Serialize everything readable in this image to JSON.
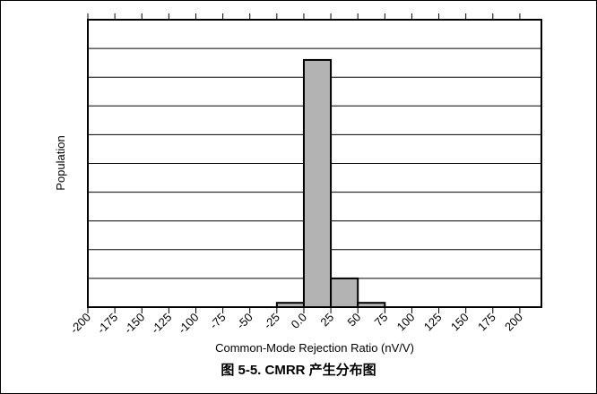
{
  "chart_data": {
    "type": "histogram",
    "caption": "图 5-5. CMRR 产生分布图",
    "x_label": "Common-Mode Rejection Ratio (nV/V)",
    "y_label": "Population",
    "bins": [
      -25,
      0,
      25,
      50,
      75
    ],
    "values": [
      0.15,
      8.6,
      1.0,
      0.15
    ],
    "color": "#b3b3b3",
    "xlim": [
      -200,
      220
    ],
    "xticks": [
      -200,
      -175,
      -150,
      -125,
      -100,
      -75,
      -50,
      -25,
      {
        "value": 0,
        "label": "0.0"
      },
      25,
      50,
      75,
      100,
      125,
      150,
      175,
      200
    ],
    "ylim": [
      0,
      10
    ],
    "yticks": [
      0,
      1,
      2,
      3,
      4,
      5,
      6,
      7,
      8,
      9,
      10
    ],
    "grid": true
  }
}
